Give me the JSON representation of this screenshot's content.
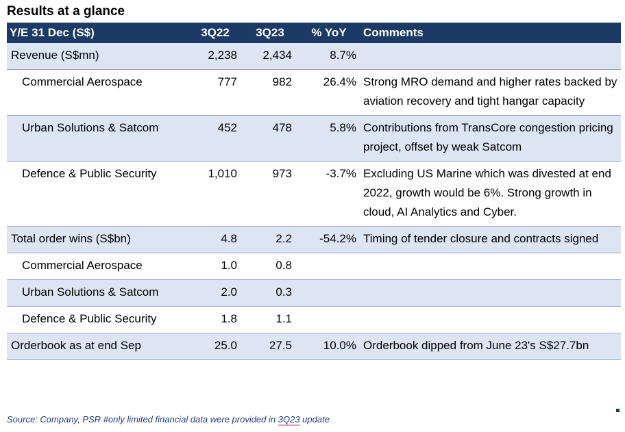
{
  "title": "Results at a glance",
  "header": {
    "col0": "Y/E 31 Dec (S$)",
    "col1": "3Q22",
    "col2": "3Q23",
    "col3": "% YoY",
    "col4": "Comments"
  },
  "rows": [
    {
      "label": "Revenue (S$mn)",
      "q22": "2,238",
      "q23": "2,434",
      "yoy": "8.7%",
      "comment": ""
    },
    {
      "label": "Commercial Aerospace",
      "q22": "777",
      "q23": "982",
      "yoy": "26.4%",
      "comment": "Strong MRO demand and higher rates backed by aviation recovery and tight hangar capacity"
    },
    {
      "label": "Urban Solutions & Satcom",
      "q22": "452",
      "q23": "478",
      "yoy": "5.8%",
      "comment": "Contributions from TransCore congestion pricing project, offset by weak Satcom"
    },
    {
      "label": "Defence & Public Security",
      "q22": "1,010",
      "q23": "973",
      "yoy": "-3.7%",
      "comment": "Excluding US Marine which was divested at end 2022, growth would be 6%. Strong growth in cloud, AI Analytics and Cyber."
    },
    {
      "label": "Total order wins (S$bn)",
      "q22": "4.8",
      "q23": "2.2",
      "yoy": "-54.2%",
      "comment": "Timing of tender closure and contracts signed"
    },
    {
      "label": "Commercial Aerospace",
      "q22": "1.0",
      "q23": "0.8",
      "yoy": "",
      "comment": ""
    },
    {
      "label": "Urban Solutions & Satcom",
      "q22": "2.0",
      "q23": "0.3",
      "yoy": "",
      "comment": ""
    },
    {
      "label": "Defence & Public Security",
      "q22": "1.8",
      "q23": "1.1",
      "yoy": "",
      "comment": ""
    },
    {
      "label": "Orderbook as at end Sep",
      "q22": "25.0",
      "q23": "27.5",
      "yoy": "10.0%",
      "comment": "Orderbook dipped from June 23's S$27.7bn"
    }
  ],
  "source": {
    "prefix": "Source: Company, PSR #only limited financial data were provided in ",
    "highlight": "3Q23",
    "suffix": " update"
  },
  "colors": {
    "header_bg": "#1b3a66",
    "shade_bg": "#dde5f2"
  }
}
